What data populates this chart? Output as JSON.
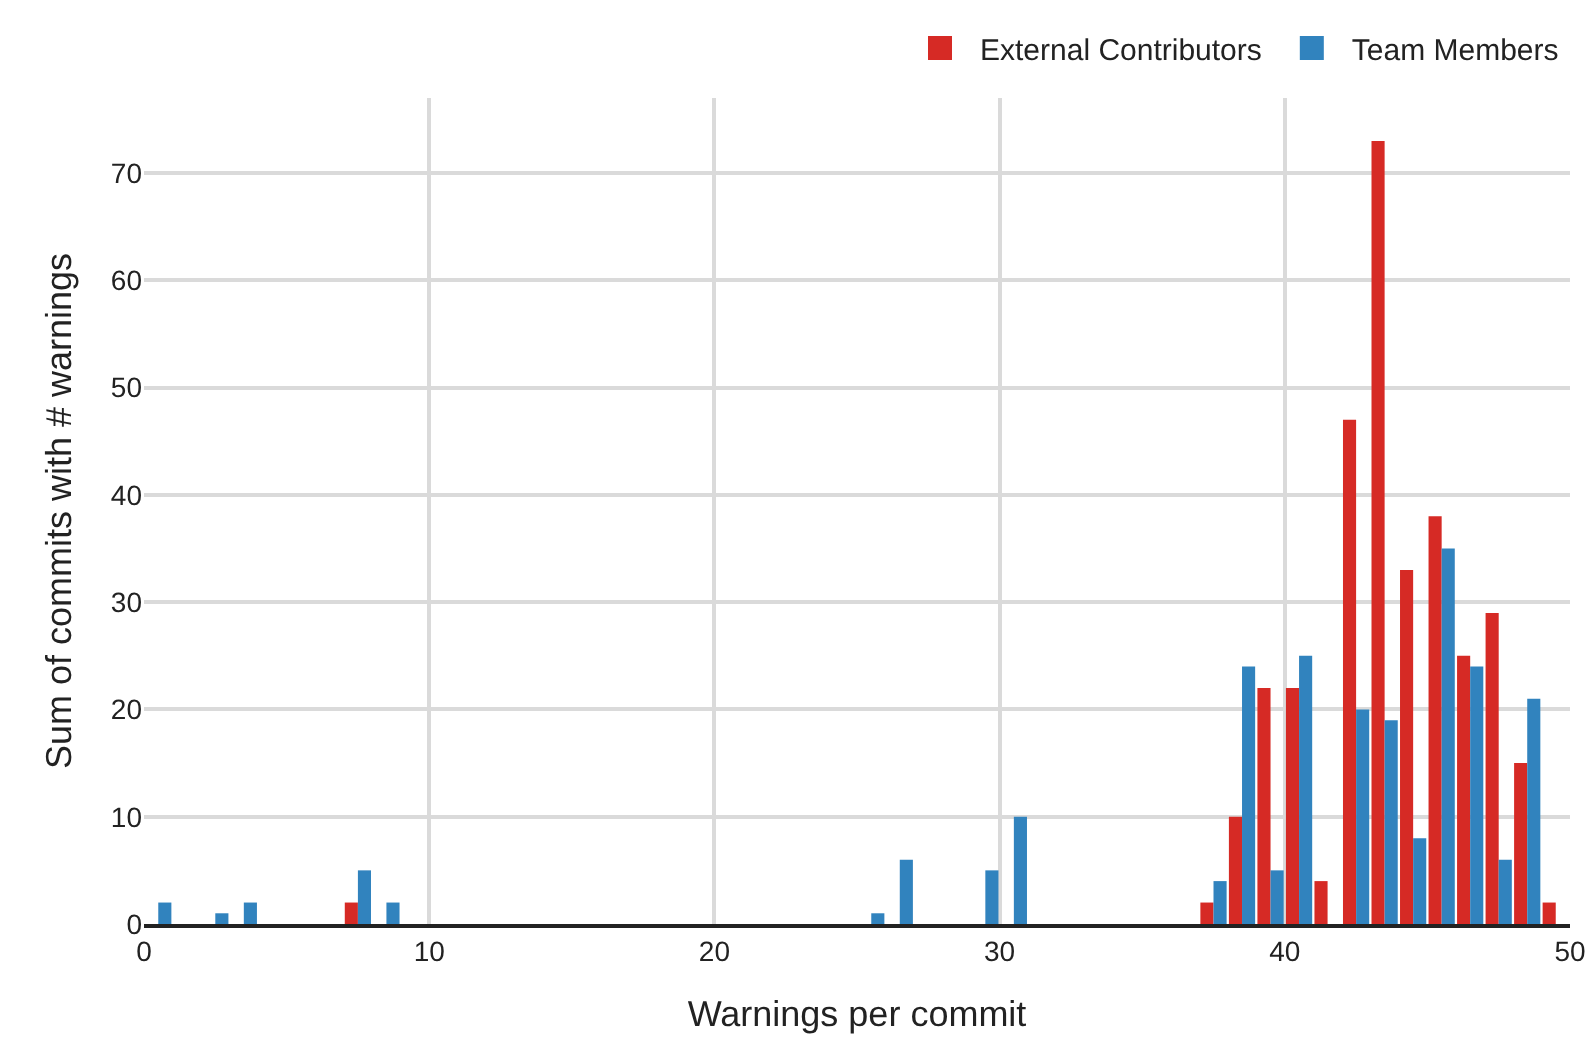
{
  "chart_data": {
    "type": "bar",
    "xlabel": "Warnings per commit",
    "ylabel": "Sum of commits with # warnings",
    "x": [
      0.5,
      2.5,
      3.5,
      7.5,
      8.5,
      25.5,
      26.5,
      29.5,
      30.5,
      37.5,
      38.5,
      39.5,
      40.5,
      41.5,
      42.5,
      43.5,
      44.5,
      45.5,
      46.5,
      47.5,
      48.5,
      49.5
    ],
    "series": [
      {
        "name": "External Contributors",
        "color": "#d62a25",
        "values": [
          null,
          null,
          null,
          2,
          null,
          null,
          null,
          null,
          null,
          2,
          10,
          22,
          22,
          4,
          47,
          73,
          33,
          38,
          25,
          29,
          15,
          2
        ]
      },
      {
        "name": "Team Members",
        "color": "#3183be",
        "values": [
          2,
          1,
          2,
          5,
          2,
          1,
          6,
          5,
          10,
          4,
          24,
          5,
          25,
          null,
          20,
          19,
          8,
          35,
          24,
          6,
          21,
          null
        ]
      }
    ],
    "xlim": [
      0,
      50
    ],
    "xticks": [
      0,
      10,
      20,
      30,
      40,
      50
    ],
    "ylim": [
      0,
      77
    ],
    "yticks": [
      0,
      10,
      20,
      30,
      40,
      50,
      60,
      70
    ],
    "grid": true,
    "legend": "top right"
  }
}
